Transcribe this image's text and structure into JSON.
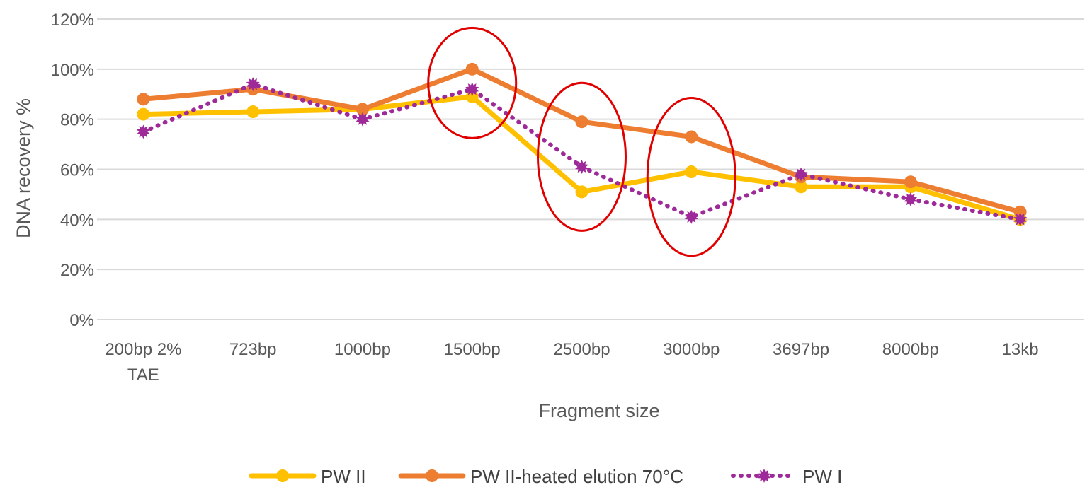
{
  "chart_data": {
    "type": "line",
    "title": "",
    "xlabel": "Fragment size",
    "ylabel": "DNA recovery %",
    "ylim": [
      0,
      1.2
    ],
    "y_ticks": [
      "0%",
      "20%",
      "40%",
      "60%",
      "80%",
      "100%",
      "120%"
    ],
    "categories": [
      "200bp 2% TAE",
      "723bp",
      "1000bp",
      "1500bp",
      "2500bp",
      "3000bp",
      "3697bp",
      "8000bp",
      "13kb"
    ],
    "category_lines": [
      [
        "200bp 2%",
        "TAE"
      ],
      [
        "723bp"
      ],
      [
        "1000bp"
      ],
      [
        "1500bp"
      ],
      [
        "2500bp"
      ],
      [
        "3000bp"
      ],
      [
        "3697bp"
      ],
      [
        "8000bp"
      ],
      [
        "13kb"
      ]
    ],
    "series": [
      {
        "name": "PW II",
        "color": "#FFC000",
        "style": "solid",
        "marker": "circle",
        "values": [
          0.82,
          0.83,
          0.84,
          0.89,
          0.51,
          0.59,
          0.53,
          0.53,
          0.4
        ]
      },
      {
        "name": "PW II-heated elution 70°C",
        "color": "#ED7D31",
        "style": "solid",
        "marker": "circle",
        "values": [
          0.88,
          0.92,
          0.84,
          1.0,
          0.79,
          0.73,
          0.57,
          0.55,
          0.43
        ]
      },
      {
        "name": "PW I",
        "color": "#9E2A9A",
        "style": "dotted",
        "marker": "star",
        "values": [
          0.75,
          0.94,
          0.8,
          0.92,
          0.61,
          0.41,
          0.58,
          0.48,
          0.4
        ]
      }
    ],
    "highlights": [
      {
        "category_index": 3,
        "color": "#E00000"
      },
      {
        "category_index": 4,
        "color": "#E00000"
      },
      {
        "category_index": 5,
        "color": "#E00000"
      }
    ],
    "legend_position": "bottom-center",
    "grid": true
  }
}
